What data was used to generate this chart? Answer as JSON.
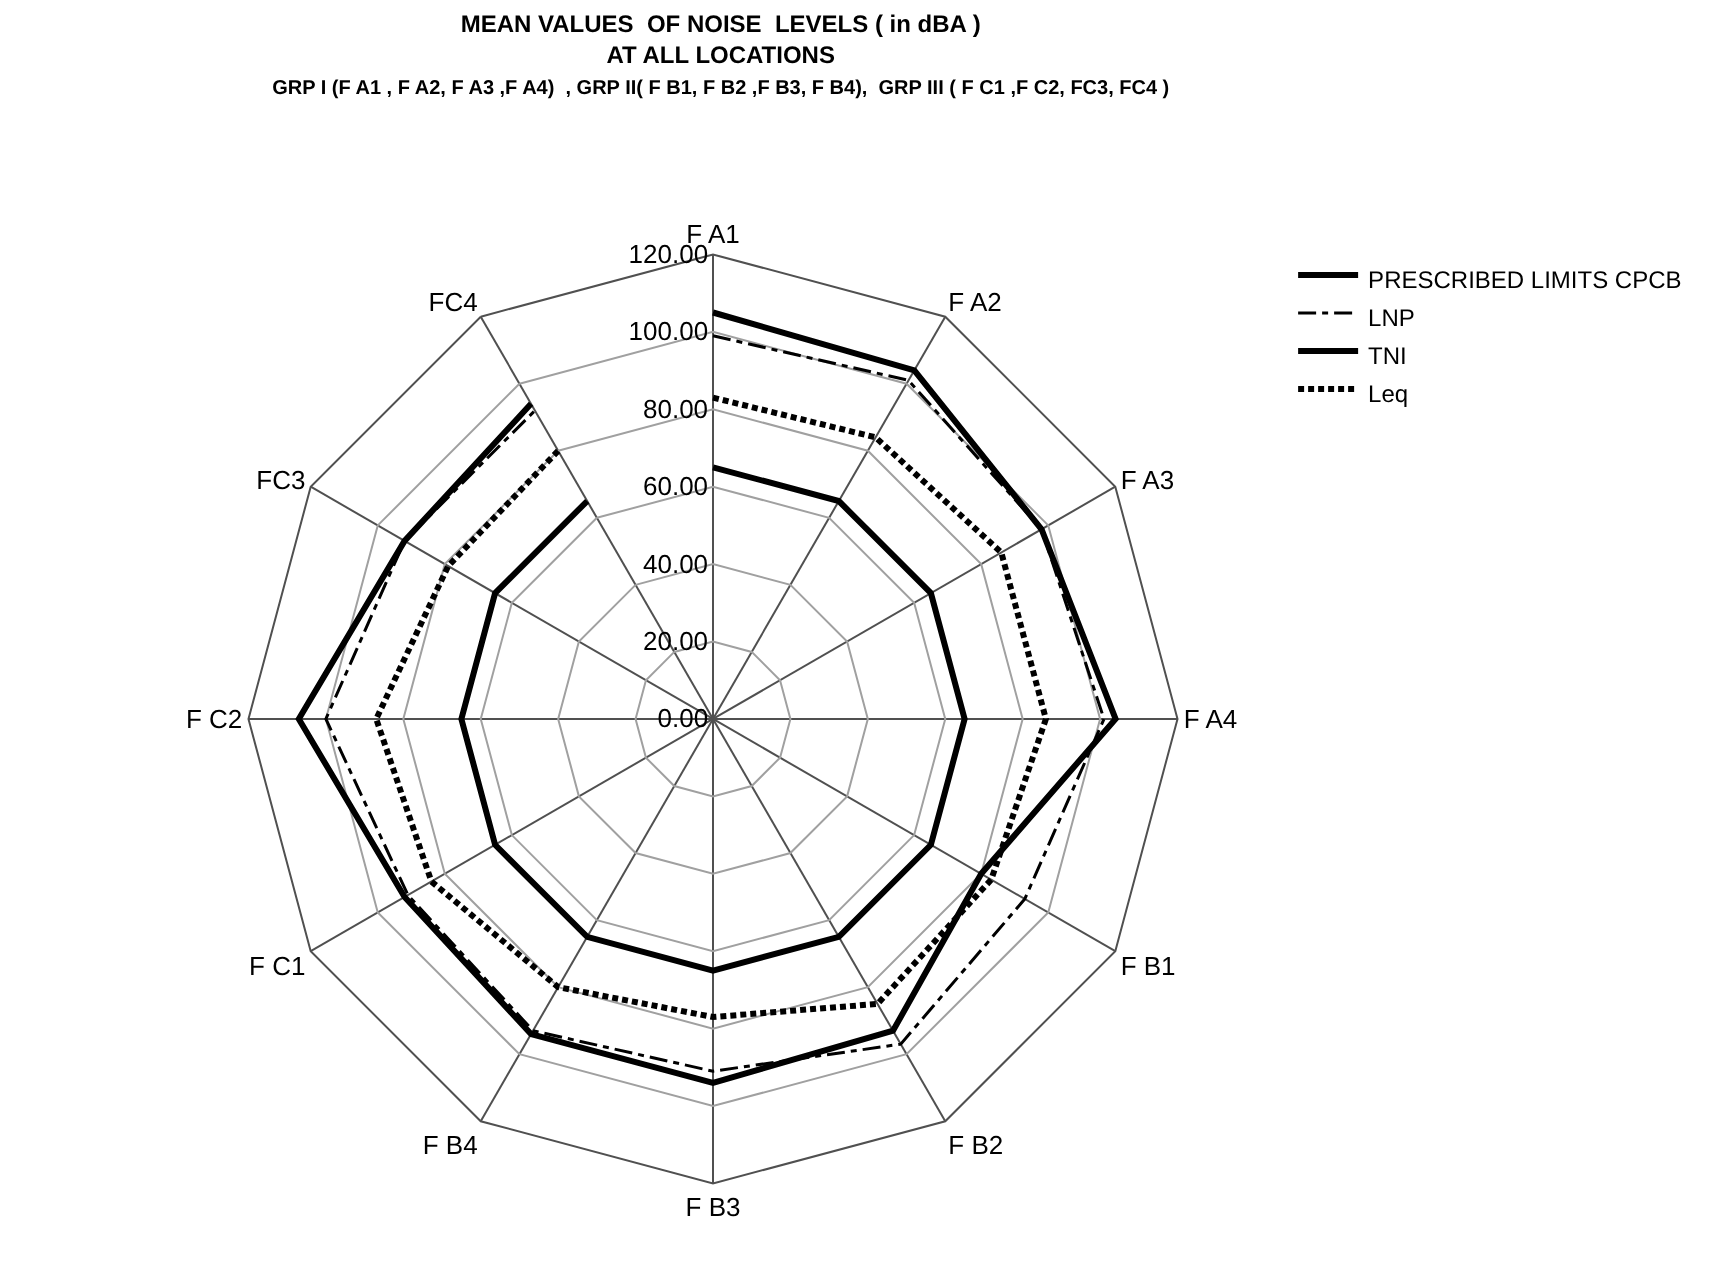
{
  "chart_data": {
    "type": "radar",
    "title": "MEAN VALUES  OF NOISE  LEVELS ( in dBA )",
    "subtitle": "AT ALL LOCATIONS\nGRP I (F A1 , F A2, F A3 ,F A4)  , GRP II( F B1, F B2 ,F B3, F B4),  GRP III ( F C1 ,F C2, FC3, FC4 )",
    "categories": [
      "F A1",
      "F A2",
      "F A3",
      "F A4",
      "F B1",
      "F B2",
      "F B3",
      "F B4",
      "F C1",
      "F C2",
      "FC3",
      "FC4"
    ],
    "series": [
      {
        "name": "PRESCRIBED LIMITS CPCB",
        "color": "#000000",
        "line_style": "solid",
        "values": [
          65,
          65,
          65,
          65,
          65,
          65,
          65,
          65,
          65,
          65,
          65,
          65
        ]
      },
      {
        "name": "LNP",
        "color": "#000000",
        "line_style": "dashdot",
        "values": [
          99,
          101,
          98,
          101,
          93,
          97,
          91,
          93,
          91,
          100,
          92,
          92
        ]
      },
      {
        "name": "TNI",
        "color": "#000000",
        "line_style": "solid",
        "values": [
          105,
          104,
          98,
          104,
          80,
          93,
          94,
          94,
          92,
          107,
          92,
          94
        ]
      },
      {
        "name": "Leq",
        "color": "#000000",
        "line_style": "dotted",
        "values": [
          83,
          84,
          86,
          86,
          83,
          85,
          77,
          80,
          84,
          87,
          79,
          80
        ]
      }
    ],
    "ylim": [
      0,
      120
    ],
    "yticks": [
      {
        "value": 0,
        "label": "0.00"
      },
      {
        "value": 20,
        "label": "20.00"
      },
      {
        "value": 40,
        "label": "40.00"
      },
      {
        "value": 60,
        "label": "60.00"
      },
      {
        "value": 80,
        "label": "80.00"
      },
      {
        "value": 100,
        "label": "100.00"
      },
      {
        "value": 120,
        "label": "120.00"
      }
    ],
    "grid": true,
    "legend": "right",
    "marker": "none"
  }
}
